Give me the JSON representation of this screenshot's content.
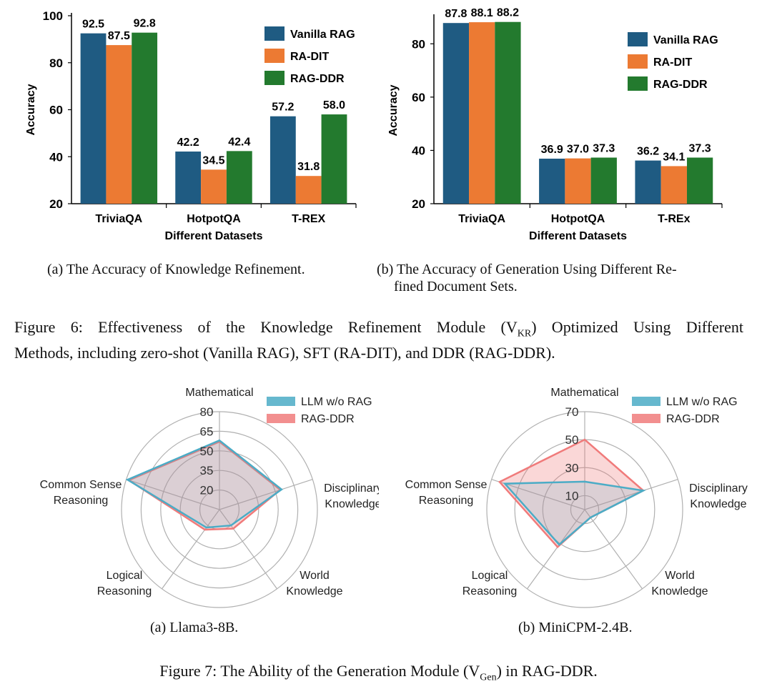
{
  "figure6": {
    "charts": [
      {
        "type": "bar",
        "categories": [
          "TriviaQA",
          "HotpotQA",
          "T-REX"
        ],
        "series": [
          {
            "name": "Vanilla RAG",
            "values": [
              92.5,
              42.2,
              57.2
            ]
          },
          {
            "name": "RA-DIT",
            "values": [
              87.5,
              34.5,
              31.8
            ]
          },
          {
            "name": "RAG-DDR",
            "values": [
              92.8,
              42.4,
              58.0
            ]
          }
        ],
        "ylabel": "Accuracy",
        "xlabel": "Different Datasets",
        "ylim": [
          20,
          100
        ],
        "yticks": [
          20,
          40,
          60,
          80,
          100
        ],
        "legend": "top-right",
        "colors": [
          "#1f5b82",
          "#ec7a33",
          "#237a2e"
        ]
      },
      {
        "type": "bar",
        "categories": [
          "TriviaQA",
          "HotpotQA",
          "T-REx"
        ],
        "series": [
          {
            "name": "Vanilla RAG",
            "values": [
              87.8,
              36.9,
              36.2
            ]
          },
          {
            "name": "RA-DIT",
            "values": [
              88.1,
              37.0,
              34.1
            ]
          },
          {
            "name": "RAG-DDR",
            "values": [
              88.2,
              37.3,
              37.3
            ]
          }
        ],
        "ylabel": "Accuracy",
        "xlabel": "Different Datasets",
        "ylim": [
          20,
          90
        ],
        "yticks": [
          20,
          40,
          60,
          80
        ],
        "legend": "top-right",
        "colors": [
          "#1f5b82",
          "#ec7a33",
          "#237a2e"
        ]
      }
    ],
    "subcaption_a": "(a) The Accuracy of Knowledge Refinement.",
    "subcaption_b_line1": "(b) The Accuracy of Generation Using Different Re-",
    "subcaption_b_line2": "fined Document Sets.",
    "caption_line1": "Figure 6: Effectiveness of the Knowledge Refinement Module (V",
    "caption_sub": "KR",
    "caption_line1_end": ") Optimized Using Different",
    "caption_line2": "Methods, including zero-shot (Vanilla RAG), SFT (RA-DIT), and DDR (RAG-DDR)."
  },
  "figure7": {
    "charts": [
      {
        "type": "radar",
        "axes": [
          "Mathematical",
          "Disciplinary Knowledge",
          "World Knowledge",
          "Logical Reasoning",
          "Common Sense Reasoning"
        ],
        "rlim": [
          5,
          80
        ],
        "ring_labels": [
          "20",
          "35",
          "50",
          "65",
          "80"
        ],
        "series": [
          {
            "name": "LLM w/o RAG",
            "values": [
              58,
              55,
              20,
              22,
              79
            ]
          },
          {
            "name": "RAG-DDR",
            "values": [
              57,
              54,
              23,
              24,
              78
            ]
          }
        ],
        "colors": [
          "#4bacc6",
          "#f07b7b"
        ]
      },
      {
        "type": "radar",
        "axes": [
          "Mathematical",
          "Disciplinary Knowledge",
          "World Knowledge",
          "Logical Reasoning",
          "Common Sense Reasoning"
        ],
        "rlim": [
          0,
          70
        ],
        "ring_labels": [
          "10",
          "30",
          "50",
          "70"
        ],
        "series": [
          {
            "name": "LLM w/o RAG",
            "values": [
              20,
              44,
              7,
              31,
              60
            ]
          },
          {
            "name": "RAG-DDR",
            "values": [
              50,
              44,
              7,
              33,
              64
            ]
          }
        ],
        "colors": [
          "#4bacc6",
          "#f07b7b"
        ]
      }
    ],
    "subcaption_a": "(a) Llama3-8B.",
    "subcaption_b": "(b) MiniCPM-2.4B.",
    "caption_pre": "Figure 7: The Ability of the Generation Module (V",
    "caption_sub": "Gen",
    "caption_post": ") in RAG-DDR."
  }
}
